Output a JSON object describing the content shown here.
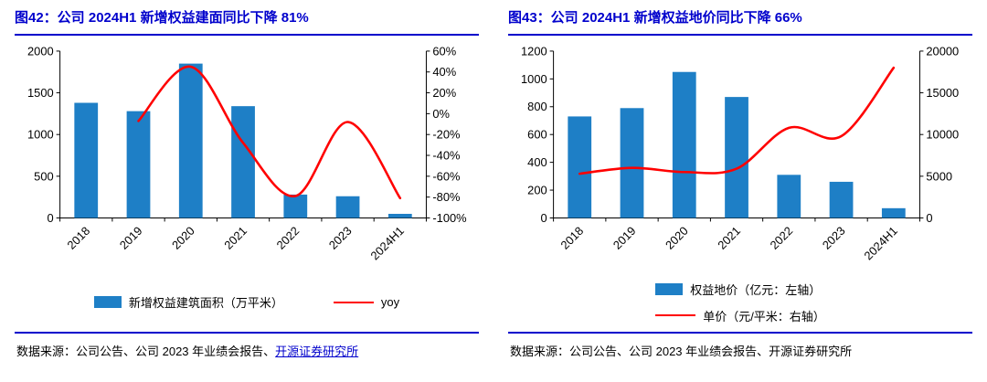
{
  "colors": {
    "title_blue": "#0000CC",
    "rule_blue": "#0000CC",
    "bar_blue": "#1E7FC6",
    "line_red": "#FF0000",
    "axis_black": "#000000",
    "link_blue": "#0000CC"
  },
  "panels": [
    {
      "title": "图42：公司 2024H1 新增权益建面同比下降 81%",
      "legend": [
        {
          "type": "bar",
          "label": "新增权益建筑面积（万平米）"
        },
        {
          "type": "line",
          "label": "yoy"
        }
      ],
      "source_prefix": "数据来源：公司公告、公司 2023 年业绩会报告、",
      "source_institute": "开源证券研究所"
    },
    {
      "title": "图43：公司 2024H1 新增权益地价同比下降 66%",
      "legend": [
        {
          "type": "bar",
          "label": "权益地价（亿元：左轴）"
        },
        {
          "type": "line",
          "label": "单价（元/平米：右轴）"
        }
      ],
      "source_prefix": "数据来源：公司公告、公司 2023 年业绩会报告、",
      "source_institute": "开源证券研究所"
    }
  ],
  "chart_data": [
    {
      "type": "bar+line",
      "title": "图42：公司 2024H1 新增权益建面同比下降 81%",
      "categories": [
        "2018",
        "2019",
        "2020",
        "2021",
        "2022",
        "2023",
        "2024H1"
      ],
      "series": [
        {
          "name": "新增权益建筑面积（万平米）",
          "type": "bar",
          "axis": "left",
          "values": [
            1380,
            1280,
            1850,
            1340,
            280,
            260,
            49
          ]
        },
        {
          "name": "yoy",
          "type": "line",
          "axis": "right",
          "values": [
            null,
            -7,
            45,
            -28,
            -79,
            -8,
            -81
          ]
        }
      ],
      "left_axis": {
        "min": 0,
        "max": 2000,
        "ticks": [
          0,
          500,
          1000,
          1500,
          2000
        ],
        "format": "number",
        "label": ""
      },
      "right_axis": {
        "min": -100,
        "max": 60,
        "ticks": [
          60,
          40,
          20,
          0,
          -20,
          -40,
          -60,
          -80,
          -100
        ],
        "format": "percent",
        "label": ""
      },
      "grid": false,
      "legend_position": "bottom"
    },
    {
      "type": "bar+line",
      "title": "图43：公司 2024H1 新增权益地价同比下降 66%",
      "categories": [
        "2018",
        "2019",
        "2020",
        "2021",
        "2022",
        "2023",
        "2024H1"
      ],
      "series": [
        {
          "name": "权益地价（亿元：左轴）",
          "type": "bar",
          "axis": "left",
          "values": [
            730,
            790,
            1050,
            870,
            310,
            260,
            70
          ]
        },
        {
          "name": "单价（元/平米：右轴）",
          "type": "line",
          "axis": "right",
          "values": [
            5300,
            6000,
            5500,
            5900,
            10800,
            9800,
            18000
          ]
        }
      ],
      "left_axis": {
        "min": 0,
        "max": 1200,
        "ticks": [
          0,
          200,
          400,
          600,
          800,
          1000,
          1200
        ],
        "format": "number",
        "label": ""
      },
      "right_axis": {
        "min": 0,
        "max": 20000,
        "ticks": [
          0,
          5000,
          10000,
          15000,
          20000
        ],
        "format": "number",
        "label": ""
      },
      "grid": false,
      "legend_position": "bottom"
    }
  ]
}
